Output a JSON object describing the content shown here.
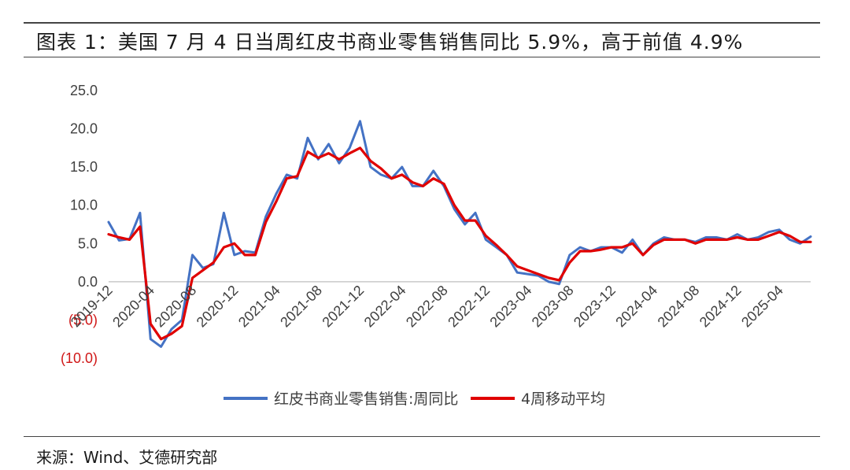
{
  "header": {
    "title": "图表 1：美国 7 月 4 日当周红皮书商业零售销售同比 5.9%，高于前值 4.9%"
  },
  "footer": {
    "source": "来源：Wind、艾德研究部"
  },
  "colors": {
    "series_weekly": "#4472C4",
    "series_ma4": "#E00000",
    "negative_tick": "#D01818",
    "axis": "#BFBFBF"
  },
  "chart_data": {
    "type": "line",
    "title": "",
    "xlabel": "",
    "ylabel": "",
    "ylim": [
      -10,
      25
    ],
    "y_ticks": [
      "25.0",
      "20.0",
      "15.0",
      "10.0",
      "5.0",
      "0.0",
      "(5.0)",
      "(10.0)"
    ],
    "y_tick_values": [
      25,
      20,
      15,
      10,
      5,
      0,
      -5,
      -10
    ],
    "x_tick_labels": [
      "2019-12",
      "2020-04",
      "2020-08",
      "2020-12",
      "2021-04",
      "2021-08",
      "2021-12",
      "2022-04",
      "2022-08",
      "2022-12",
      "2023-04",
      "2023-08",
      "2023-12",
      "2024-04",
      "2024-08",
      "2024-12",
      "2025-04"
    ],
    "x_start": "2019-12",
    "x_end": "2025-07",
    "grid": false,
    "legend_position": "bottom",
    "series": [
      {
        "name": "红皮书商业零售销售:周同比",
        "color": "#4472C4",
        "points": [
          [
            "2019-12",
            7.8
          ],
          [
            "2020-01",
            5.4
          ],
          [
            "2020-02",
            5.6
          ],
          [
            "2020-03",
            9.0
          ],
          [
            "2020-04",
            -7.5
          ],
          [
            "2020-05",
            -8.5
          ],
          [
            "2020-06",
            -6.2
          ],
          [
            "2020-07",
            -5.0
          ],
          [
            "2020-08",
            3.5
          ],
          [
            "2020-09",
            1.8
          ],
          [
            "2020-10",
            2.3
          ],
          [
            "2020-11",
            9.0
          ],
          [
            "2020-12",
            3.5
          ],
          [
            "2021-01",
            4.0
          ],
          [
            "2021-02",
            3.8
          ],
          [
            "2021-03",
            8.5
          ],
          [
            "2021-04",
            11.5
          ],
          [
            "2021-05",
            14.0
          ],
          [
            "2021-06",
            13.5
          ],
          [
            "2021-07",
            18.8
          ],
          [
            "2021-08",
            16.0
          ],
          [
            "2021-09",
            18.0
          ],
          [
            "2021-10",
            15.5
          ],
          [
            "2021-11",
            17.5
          ],
          [
            "2021-12",
            21.0
          ],
          [
            "2022-01",
            15.0
          ],
          [
            "2022-02",
            14.0
          ],
          [
            "2022-03",
            13.5
          ],
          [
            "2022-04",
            15.0
          ],
          [
            "2022-05",
            12.5
          ],
          [
            "2022-06",
            12.5
          ],
          [
            "2022-07",
            14.5
          ],
          [
            "2022-08",
            12.5
          ],
          [
            "2022-09",
            9.5
          ],
          [
            "2022-10",
            7.5
          ],
          [
            "2022-11",
            9.0
          ],
          [
            "2022-12",
            5.5
          ],
          [
            "2023-01",
            4.5
          ],
          [
            "2023-02",
            3.5
          ],
          [
            "2023-03",
            1.2
          ],
          [
            "2023-04",
            1.0
          ],
          [
            "2023-05",
            0.8
          ],
          [
            "2023-06",
            0.0
          ],
          [
            "2023-07",
            -0.3
          ],
          [
            "2023-08",
            3.5
          ],
          [
            "2023-09",
            4.5
          ],
          [
            "2023-10",
            4.0
          ],
          [
            "2023-11",
            4.5
          ],
          [
            "2023-12",
            4.5
          ],
          [
            "2024-01",
            3.8
          ],
          [
            "2024-02",
            5.5
          ],
          [
            "2024-03",
            3.5
          ],
          [
            "2024-04",
            5.0
          ],
          [
            "2024-05",
            5.8
          ],
          [
            "2024-06",
            5.5
          ],
          [
            "2024-07",
            5.5
          ],
          [
            "2024-08",
            5.2
          ],
          [
            "2024-09",
            5.8
          ],
          [
            "2024-10",
            5.8
          ],
          [
            "2024-11",
            5.5
          ],
          [
            "2024-12",
            6.2
          ],
          [
            "2025-01",
            5.5
          ],
          [
            "2025-02",
            5.8
          ],
          [
            "2025-03",
            6.5
          ],
          [
            "2025-04",
            6.8
          ],
          [
            "2025-05",
            5.5
          ],
          [
            "2025-06",
            5.0
          ],
          [
            "2025-07",
            5.9
          ]
        ]
      },
      {
        "name": "4周移动平均",
        "color": "#E00000",
        "points": [
          [
            "2019-12",
            6.2
          ],
          [
            "2020-01",
            5.8
          ],
          [
            "2020-02",
            5.5
          ],
          [
            "2020-03",
            7.2
          ],
          [
            "2020-04",
            -5.5
          ],
          [
            "2020-05",
            -7.5
          ],
          [
            "2020-06",
            -6.8
          ],
          [
            "2020-07",
            -5.8
          ],
          [
            "2020-08",
            0.5
          ],
          [
            "2020-09",
            1.5
          ],
          [
            "2020-10",
            2.5
          ],
          [
            "2020-11",
            4.5
          ],
          [
            "2020-12",
            5.0
          ],
          [
            "2021-01",
            3.5
          ],
          [
            "2021-02",
            3.5
          ],
          [
            "2021-03",
            7.8
          ],
          [
            "2021-04",
            10.5
          ],
          [
            "2021-05",
            13.5
          ],
          [
            "2021-06",
            13.8
          ],
          [
            "2021-07",
            17.0
          ],
          [
            "2021-08",
            16.2
          ],
          [
            "2021-09",
            16.8
          ],
          [
            "2021-10",
            16.0
          ],
          [
            "2021-11",
            16.8
          ],
          [
            "2021-12",
            17.5
          ],
          [
            "2022-01",
            15.8
          ],
          [
            "2022-02",
            14.8
          ],
          [
            "2022-03",
            13.5
          ],
          [
            "2022-04",
            14.0
          ],
          [
            "2022-05",
            13.0
          ],
          [
            "2022-06",
            12.5
          ],
          [
            "2022-07",
            13.5
          ],
          [
            "2022-08",
            12.8
          ],
          [
            "2022-09",
            10.0
          ],
          [
            "2022-10",
            8.0
          ],
          [
            "2022-11",
            8.0
          ],
          [
            "2022-12",
            6.0
          ],
          [
            "2023-01",
            4.8
          ],
          [
            "2023-02",
            3.5
          ],
          [
            "2023-03",
            2.0
          ],
          [
            "2023-04",
            1.5
          ],
          [
            "2023-05",
            1.0
          ],
          [
            "2023-06",
            0.5
          ],
          [
            "2023-07",
            0.2
          ],
          [
            "2023-08",
            2.5
          ],
          [
            "2023-09",
            4.0
          ],
          [
            "2023-10",
            4.0
          ],
          [
            "2023-11",
            4.2
          ],
          [
            "2023-12",
            4.5
          ],
          [
            "2024-01",
            4.5
          ],
          [
            "2024-02",
            5.0
          ],
          [
            "2024-03",
            3.5
          ],
          [
            "2024-04",
            4.8
          ],
          [
            "2024-05",
            5.5
          ],
          [
            "2024-06",
            5.5
          ],
          [
            "2024-07",
            5.5
          ],
          [
            "2024-08",
            5.0
          ],
          [
            "2024-09",
            5.5
          ],
          [
            "2024-10",
            5.5
          ],
          [
            "2024-11",
            5.5
          ],
          [
            "2024-12",
            5.8
          ],
          [
            "2025-01",
            5.5
          ],
          [
            "2025-02",
            5.5
          ],
          [
            "2025-03",
            6.0
          ],
          [
            "2025-04",
            6.5
          ],
          [
            "2025-05",
            6.0
          ],
          [
            "2025-06",
            5.2
          ],
          [
            "2025-07",
            5.2
          ]
        ]
      }
    ]
  }
}
